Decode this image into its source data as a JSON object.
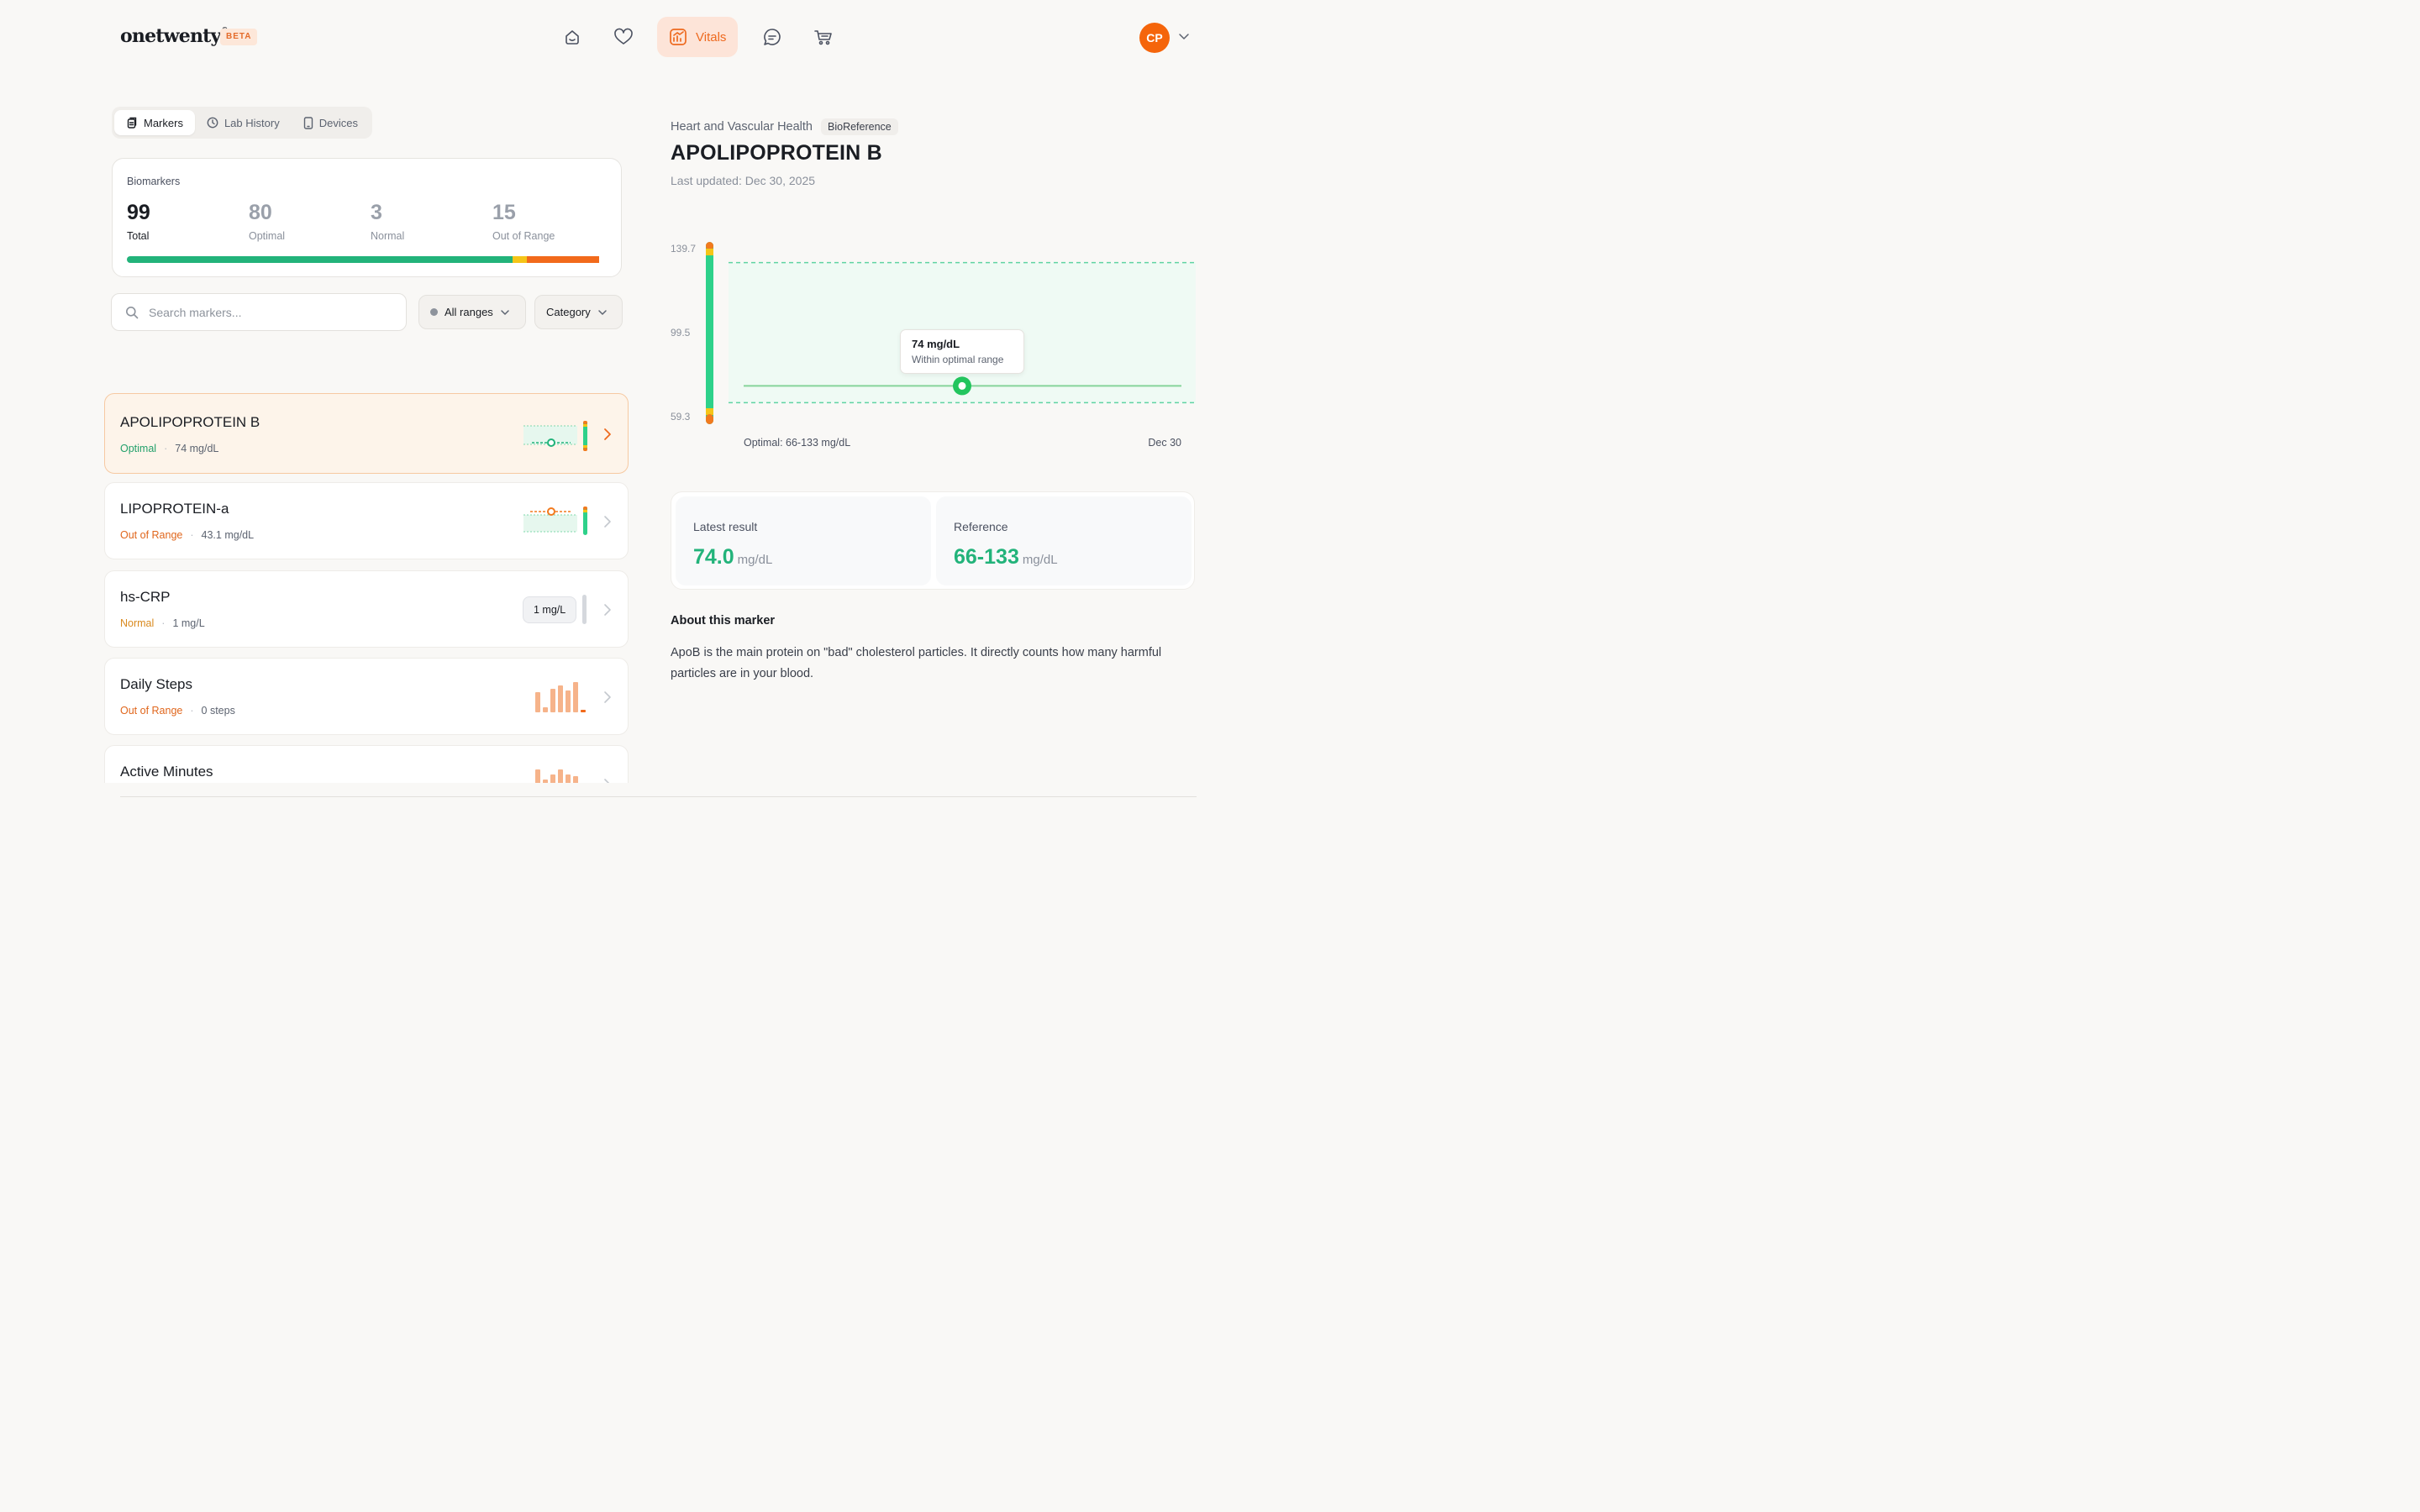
{
  "app": {
    "logo_text": "onetwenty",
    "logo_mark": "®",
    "beta_label": "BETA"
  },
  "nav": {
    "items": [
      {
        "name": "home",
        "icon": "home-icon"
      },
      {
        "name": "health",
        "icon": "heart-icon"
      },
      {
        "name": "vitals",
        "icon": "chart-icon",
        "label": "Vitals",
        "active": true
      },
      {
        "name": "chat",
        "icon": "chat-icon"
      },
      {
        "name": "shop",
        "icon": "cart-icon"
      }
    ],
    "avatar_initials": "CP"
  },
  "tabs": [
    {
      "label": "Markers",
      "icon": "clipboard-icon",
      "active": true
    },
    {
      "label": "Lab History",
      "icon": "clock-icon",
      "active": false
    },
    {
      "label": "Devices",
      "icon": "phone-icon",
      "active": false
    }
  ],
  "summary": {
    "title": "Biomarkers",
    "stats": [
      {
        "value": "99",
        "label": "Total"
      },
      {
        "value": "80",
        "label": "Optimal"
      },
      {
        "value": "3",
        "label": "Normal"
      },
      {
        "value": "15",
        "label": "Out of Range"
      }
    ],
    "bar_colors": {
      "optimal": "#22b37a",
      "normal": "#f5c518",
      "out_of_range": "#f26a1b"
    }
  },
  "filters": {
    "search_placeholder": "Search markers...",
    "range_label": "All ranges",
    "category_label": "Category"
  },
  "markers": [
    {
      "name": "APOLIPOPROTEIN B",
      "status": "Optimal",
      "value": "74 mg/dL",
      "status_color": "#22a06b",
      "selected": true
    },
    {
      "name": "LIPOPROTEIN-a",
      "status": "Out of Range",
      "value": "43.1 mg/dL",
      "status_color": "#e0661c"
    },
    {
      "name": "hs-CRP",
      "status": "Normal",
      "value": "1 mg/L",
      "status_color": "#d98a1f",
      "chip": "1 mg/L"
    },
    {
      "name": "Daily Steps",
      "status": "Out of Range",
      "value": "0 steps",
      "status_color": "#e0661c"
    },
    {
      "name": "Active Minutes",
      "status": "",
      "value": ""
    }
  ],
  "detail": {
    "category": "Heart and Vascular Health",
    "lab": "BioReference",
    "title": "APOLIPOPROTEIN B",
    "updated": "Last updated: Dec 30, 2025",
    "tooltip_value": "74 mg/dL",
    "tooltip_note": "Within optimal range",
    "latest_label": "Latest result",
    "latest_value": "74.0",
    "latest_unit": "mg/dL",
    "reference_label": "Reference",
    "reference_value": "66-133",
    "reference_unit": "mg/dL",
    "about_title": "About this marker",
    "about_text": "ApoB is the main protein on \"bad\" cholesterol particles. It directly counts how many harmful particles are in your blood."
  },
  "chart_data": {
    "type": "line",
    "x": [
      "Dec 30"
    ],
    "series": [
      {
        "values": [
          74
        ]
      }
    ],
    "y_ticks": [
      "139.7",
      "99.5",
      "59.3"
    ],
    "ylim": [
      59.3,
      139.7
    ],
    "optimal_range": [
      66,
      133
    ],
    "optimal_label": "Optimal: 66-133 mg/dL",
    "x_label": "Dec 30",
    "colors": {
      "optimal_band": "#effaf4",
      "line": "#86d49b",
      "point": "#22c55e",
      "dashed": "#5fd3a2"
    }
  }
}
